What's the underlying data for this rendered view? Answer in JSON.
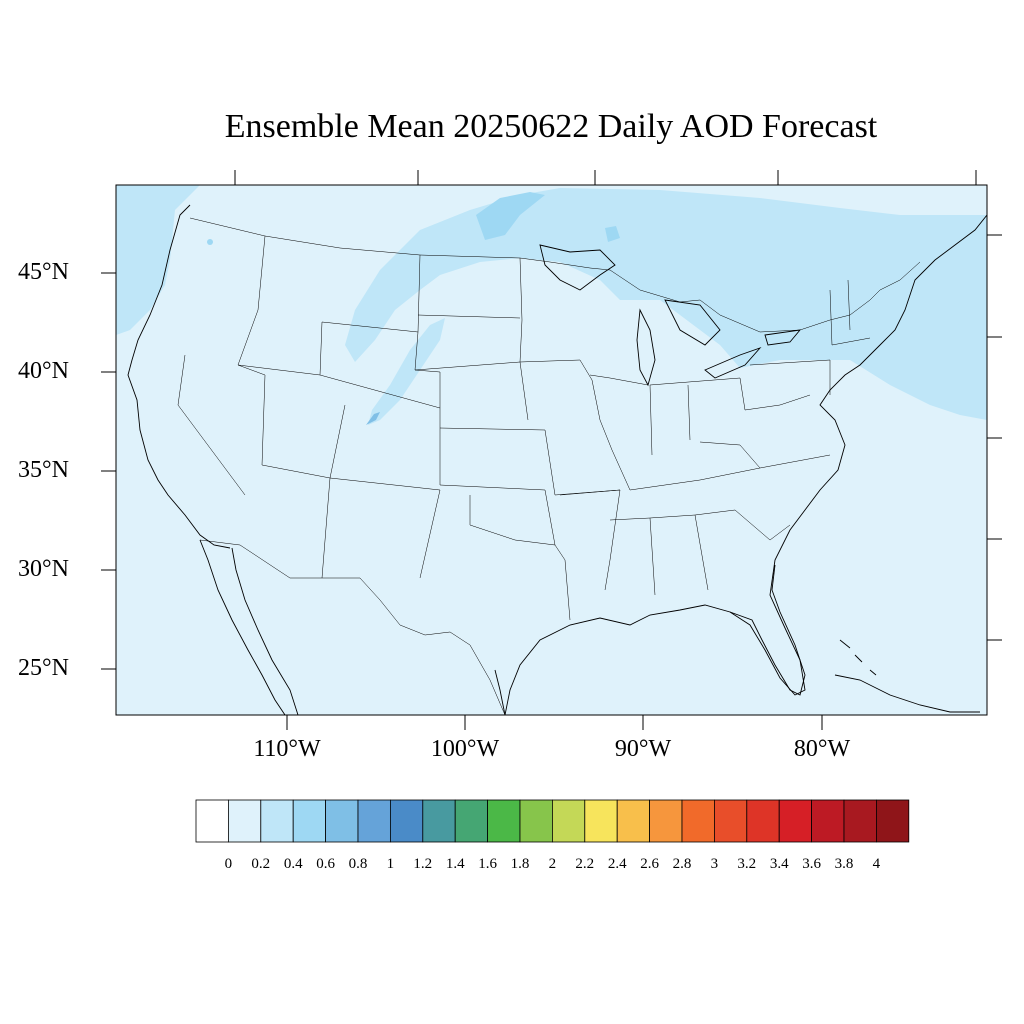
{
  "title": "Ensemble Mean 20250622 Daily AOD Forecast",
  "map": {
    "projection": "lambert-conformal",
    "region": "CONUS",
    "lat_labels": [
      "45°N",
      "40°N",
      "35°N",
      "30°N",
      "25°N"
    ],
    "lon_labels": [
      "110°W",
      "100°W",
      "90°W",
      "80°W"
    ],
    "background_color": "#dff2fb",
    "plume_color": "#bfe6f8",
    "hotspot_color": "#9ed8f3"
  },
  "colorbar": {
    "labels": [
      "0",
      "0.2",
      "0.4",
      "0.6",
      "0.8",
      "1",
      "1.2",
      "1.4",
      "1.6",
      "1.8",
      "2",
      "2.2",
      "2.4",
      "2.6",
      "2.8",
      "3",
      "3.2",
      "3.4",
      "3.6",
      "3.8",
      "4"
    ],
    "colors": [
      "#ffffff",
      "#dff2fb",
      "#bfe6f8",
      "#9ed8f3",
      "#7fbfe6",
      "#65a3d9",
      "#4a8bc8",
      "#489aa0",
      "#45a673",
      "#4bb847",
      "#87c54b",
      "#c4d857",
      "#f7e45c",
      "#f8bf4b",
      "#f6963d",
      "#f16a2a",
      "#e84e2a",
      "#de3427",
      "#d61f26",
      "#bd1a24",
      "#a81920",
      "#8f1519"
    ]
  }
}
